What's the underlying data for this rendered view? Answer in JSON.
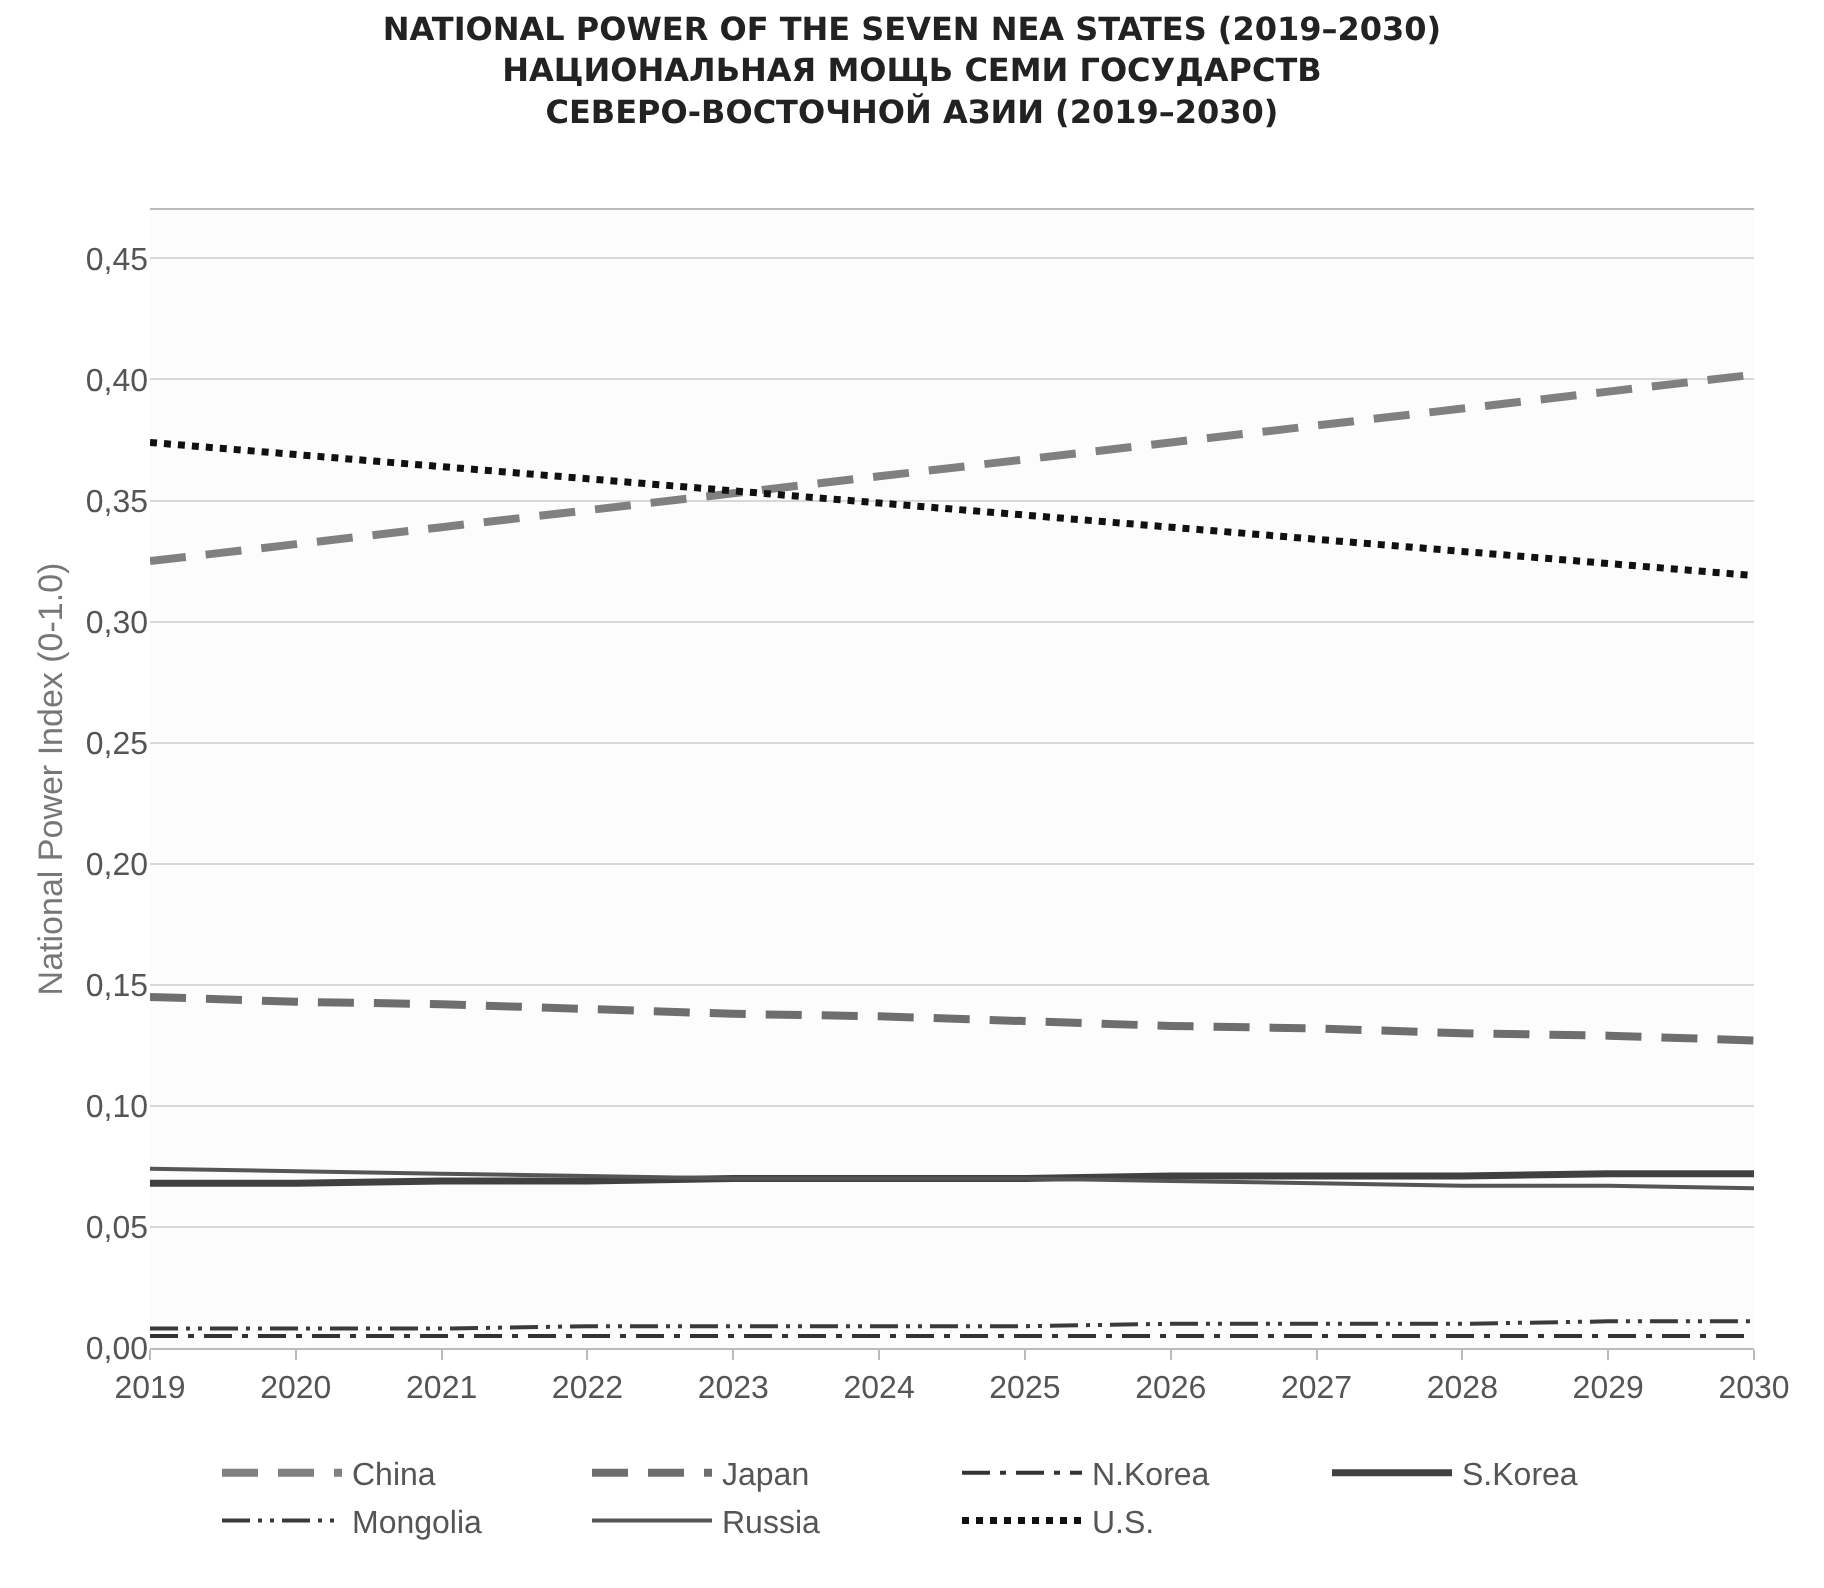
{
  "chart_data": {
    "type": "line",
    "title": "NATIONAL POWER OF THE SEVEN NEA STATES (2019–2030)\nНАЦИОНАЛЬНАЯ МОЩЬ СЕМИ ГОСУДАРСТВ\nСЕВЕРО-ВОСТОЧНОЙ АЗИИ (2019–2030)",
    "ylabel": "National Power Index (0-1.0)",
    "x": [
      2019,
      2020,
      2021,
      2022,
      2023,
      2024,
      2025,
      2026,
      2027,
      2028,
      2029,
      2030
    ],
    "xlim": [
      2019,
      2030
    ],
    "xticks": [
      2019,
      2020,
      2021,
      2022,
      2023,
      2024,
      2025,
      2026,
      2027,
      2028,
      2029,
      2030
    ],
    "ylim": [
      0,
      0.47
    ],
    "yticks": [
      {
        "value": 0,
        "label": "0,00"
      },
      {
        "value": 0.05,
        "label": "0,05"
      },
      {
        "value": 0.1,
        "label": "0,10"
      },
      {
        "value": 0.15,
        "label": "0,15"
      },
      {
        "value": 0.2,
        "label": "0,20"
      },
      {
        "value": 0.25,
        "label": "0,25"
      },
      {
        "value": 0.3,
        "label": "0,30"
      },
      {
        "value": 0.35,
        "label": "0,35"
      },
      {
        "value": 0.4,
        "label": "0,40"
      },
      {
        "value": 0.45,
        "label": "0,45"
      }
    ],
    "grid": "y",
    "legend": "bottom",
    "marker": "none",
    "series": [
      {
        "name": "China",
        "color": "#808080",
        "line_style": "dashed",
        "values": [
          0.325,
          0.332,
          0.339,
          0.346,
          0.353,
          0.36,
          0.367,
          0.374,
          0.381,
          0.388,
          0.395,
          0.402
        ]
      },
      {
        "name": "Japan",
        "color": "#6e6e6e",
        "line_style": "dashed",
        "values": [
          0.145,
          0.143,
          0.142,
          0.14,
          0.138,
          0.137,
          0.135,
          0.133,
          0.132,
          0.13,
          0.129,
          0.127
        ]
      },
      {
        "name": "N.Korea",
        "color": "#333333",
        "line_style": "dashdot",
        "values": [
          0.005,
          0.005,
          0.005,
          0.005,
          0.005,
          0.005,
          0.005,
          0.005,
          0.005,
          0.005,
          0.005,
          0.005
        ]
      },
      {
        "name": "S.Korea",
        "color": "#404040",
        "line_style": "solid",
        "values": [
          0.068,
          0.068,
          0.069,
          0.069,
          0.07,
          0.07,
          0.07,
          0.071,
          0.071,
          0.071,
          0.072,
          0.072
        ]
      },
      {
        "name": "Mongolia",
        "color": "#3a3a3a",
        "line_style": "dashdotdot",
        "values": [
          0.008,
          0.008,
          0.008,
          0.009,
          0.009,
          0.009,
          0.009,
          0.01,
          0.01,
          0.01,
          0.011,
          0.011
        ]
      },
      {
        "name": "Russia",
        "color": "#555555",
        "line_style": "solid",
        "values": [
          0.074,
          0.073,
          0.072,
          0.071,
          0.07,
          0.07,
          0.07,
          0.069,
          0.068,
          0.067,
          0.067,
          0.066
        ]
      },
      {
        "name": "U.S.",
        "color": "#111111",
        "line_style": "dotted",
        "values": [
          0.374,
          0.369,
          0.364,
          0.359,
          0.354,
          0.349,
          0.344,
          0.339,
          0.334,
          0.329,
          0.324,
          0.319
        ]
      }
    ]
  }
}
